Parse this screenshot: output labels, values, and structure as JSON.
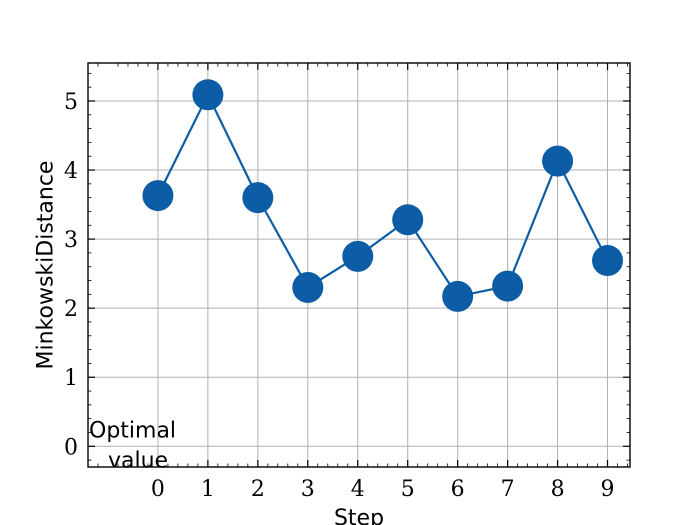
{
  "chart_data": {
    "type": "line",
    "title": "",
    "xlabel": "Step",
    "ylabel": "MinkowskiDistance",
    "x": [
      0,
      1,
      2,
      3,
      4,
      5,
      6,
      7,
      8,
      9
    ],
    "series": [
      {
        "values": [
          3.63,
          5.09,
          3.6,
          2.3,
          2.75,
          3.28,
          2.17,
          2.32,
          4.13,
          2.69
        ],
        "color": "#0C5DA5"
      }
    ],
    "xlim": [
      -1.4,
      9.45
    ],
    "ylim": [
      -0.3,
      5.55
    ],
    "xticks": [
      "0",
      "1",
      "2",
      "3",
      "4",
      "5",
      "6",
      "7",
      "8",
      "9"
    ],
    "yticks": [
      "0",
      "1",
      "2",
      "3",
      "4",
      "5"
    ],
    "grid": true,
    "annotation": {
      "line1": "Optimal",
      "line2": "value",
      "y": 0
    }
  }
}
